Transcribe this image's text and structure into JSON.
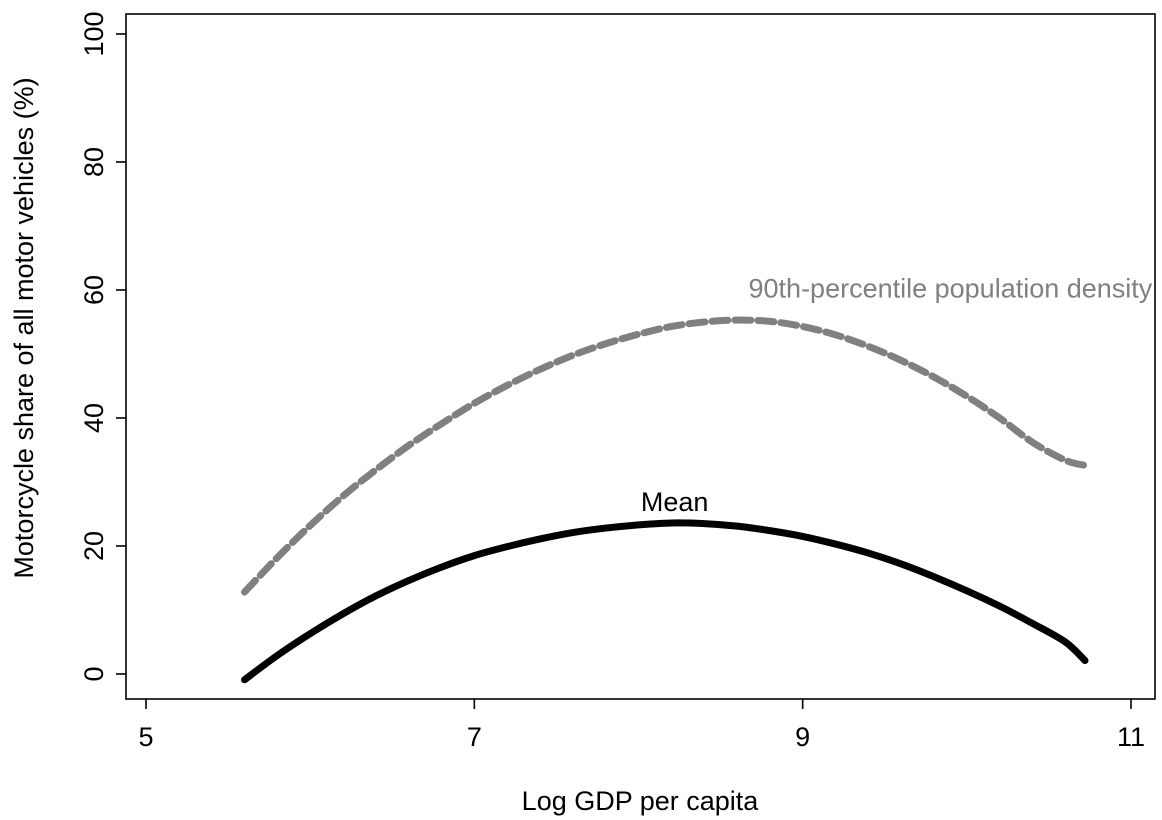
{
  "chart_data": {
    "type": "line",
    "title": "",
    "xlabel": "Log GDP per capita",
    "ylabel": "Motorcycle share of all motor vehicles (%)",
    "xlim": [
      5,
      11
    ],
    "ylim": [
      0,
      100
    ],
    "xticks": [
      "5",
      "7",
      "9",
      "11"
    ],
    "yticks": [
      "0",
      "20",
      "40",
      "60",
      "80",
      "100"
    ],
    "grid": false,
    "series": [
      {
        "name": "Mean",
        "color": "#000000",
        "style": "solid",
        "x": [
          5.6,
          5.8,
          6.0,
          6.2,
          6.4,
          6.6,
          6.8,
          7.0,
          7.2,
          7.4,
          7.6,
          7.8,
          8.0,
          8.2,
          8.4,
          8.6,
          8.8,
          9.0,
          9.2,
          9.4,
          9.6,
          9.8,
          10.0,
          10.2,
          10.4,
          10.6,
          10.72
        ],
        "y": [
          -0.9,
          2.9,
          6.3,
          9.4,
          12.2,
          14.6,
          16.7,
          18.5,
          19.9,
          21.1,
          22.1,
          22.8,
          23.3,
          23.6,
          23.5,
          23.1,
          22.4,
          21.5,
          20.3,
          18.9,
          17.2,
          15.2,
          13.0,
          10.6,
          7.9,
          5.0,
          2.1
        ]
      },
      {
        "name": "90th-percentile population density",
        "color": "#808080",
        "style": "dashed",
        "x": [
          5.6,
          5.8,
          6.0,
          6.2,
          6.4,
          6.6,
          6.8,
          7.0,
          7.2,
          7.4,
          7.6,
          7.8,
          8.0,
          8.2,
          8.4,
          8.6,
          8.8,
          9.0,
          9.2,
          9.4,
          9.6,
          9.8,
          10.0,
          10.2,
          10.4,
          10.6,
          10.72
        ],
        "y": [
          12.8,
          18.2,
          23.2,
          27.8,
          31.9,
          35.7,
          39.1,
          42.3,
          45.1,
          47.6,
          49.8,
          51.6,
          53.1,
          54.3,
          55.0,
          55.3,
          55.1,
          54.3,
          53.0,
          51.2,
          49.0,
          46.4,
          43.4,
          40.0,
          36.2,
          33.4,
          32.6
        ]
      }
    ],
    "annotations": [
      {
        "text": "Mean",
        "x": 8.22,
        "y": 25.5,
        "series": 0
      },
      {
        "text": "90th-percentile population density",
        "x": 9.9,
        "y": 58.8,
        "series": 1
      }
    ]
  }
}
